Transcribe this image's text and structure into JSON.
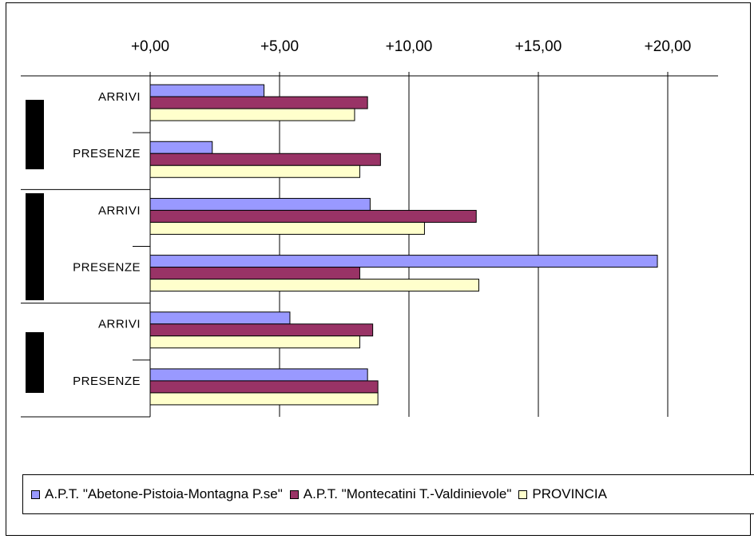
{
  "chart_data": {
    "type": "bar",
    "orientation": "horizontal",
    "x_ticks": [
      "+0,00",
      "+5,00",
      "+10,00",
      "+15,00",
      "+20,00"
    ],
    "xlim": [
      0,
      20
    ],
    "x_axis_position": "top",
    "grid": "vertical",
    "groups": [
      {
        "categories": [
          "ARRIVI",
          "PRESENZE"
        ]
      },
      {
        "categories": [
          "ARRIVI",
          "PRESENZE"
        ]
      },
      {
        "categories": [
          "ARRIVI",
          "PRESENZE"
        ]
      }
    ],
    "categories": [
      "ARRIVI",
      "PRESENZE",
      "ARRIVI",
      "PRESENZE",
      "ARRIVI",
      "PRESENZE"
    ],
    "series": [
      {
        "name": "A.P.T. \"Abetone-Pistoia-Montagna P.se\"",
        "color": "#9999ff",
        "values": [
          4.4,
          2.4,
          8.5,
          19.6,
          5.4,
          8.4
        ]
      },
      {
        "name": "A.P.T. \"Montecatini T.-Valdinievole\"",
        "color": "#993366",
        "values": [
          8.4,
          8.9,
          12.6,
          8.1,
          8.6,
          8.8
        ]
      },
      {
        "name": "PROVINCIA",
        "color": "#ffffcc",
        "values": [
          7.9,
          8.1,
          10.6,
          12.7,
          8.1,
          8.8
        ]
      }
    ],
    "legend_position": "bottom"
  }
}
